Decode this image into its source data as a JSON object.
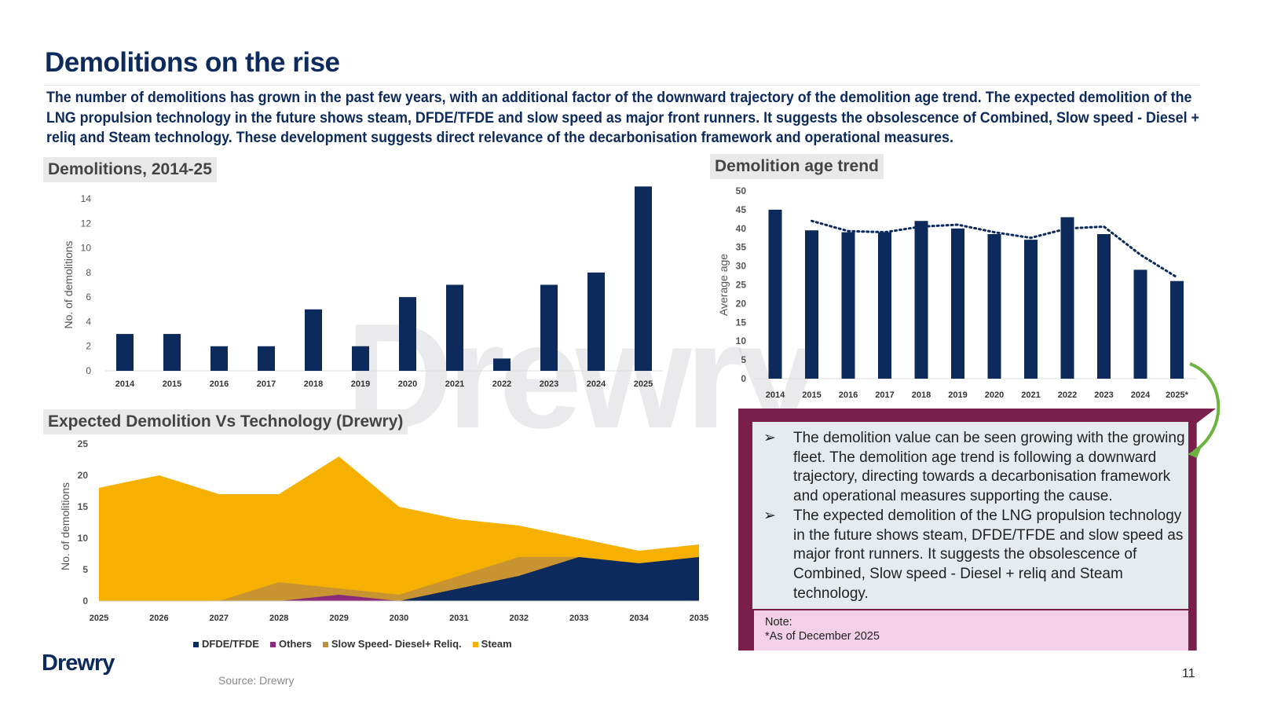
{
  "title": "Demolitions on the rise",
  "intro": "The number of demolitions has grown in the past few years, with an additional factor of the downward trajectory of the demolition age trend. The expected demolition of the LNG propulsion technology in the future shows steam, DFDE/TFDE and slow speed as major front runners. It suggests the obsolescence of Combined, Slow speed - Diesel + reliq and Steam technology. These development suggests direct relevance of the decarbonisation framework and operational measures.",
  "watermark": "Drewry",
  "colors": {
    "navy": "#0d2a5c",
    "steam": "#f5b000",
    "slow": "#bf8f3a",
    "others": "#8b2a7a",
    "box": "#7a1f4c",
    "note": "#f3d0e8",
    "arrow": "#6cb33f"
  },
  "chart_data": [
    {
      "type": "bar",
      "title": "Demolitions, 2014-25",
      "ylabel": "No. of demolitions",
      "ylim": [
        0,
        15
      ],
      "yticks": [
        0,
        2,
        4,
        6,
        8,
        10,
        12,
        14
      ],
      "categories": [
        "2014",
        "2015",
        "2016",
        "2017",
        "2018",
        "2019",
        "2020",
        "2021",
        "2022",
        "2023",
        "2024",
        "2025"
      ],
      "values": [
        3,
        3,
        2,
        2,
        5,
        2,
        6,
        7,
        1,
        7,
        8,
        15
      ]
    },
    {
      "type": "bar",
      "title": "Demolition age trend",
      "ylabel": "Average age",
      "ylim": [
        0,
        50
      ],
      "yticks": [
        0,
        5,
        10,
        15,
        20,
        25,
        30,
        35,
        40,
        45,
        50
      ],
      "categories": [
        "2014",
        "2015",
        "2016",
        "2017",
        "2018",
        "2019",
        "2020",
        "2021",
        "2022",
        "2023",
        "2024",
        "2025*"
      ],
      "values": [
        45,
        39.5,
        39,
        39,
        42,
        40,
        38.5,
        37,
        43,
        38.5,
        29,
        26
      ],
      "trendline": [
        null,
        42,
        39.3,
        39,
        40.5,
        41,
        39,
        37.5,
        40,
        40.5,
        33,
        27
      ]
    },
    {
      "type": "area",
      "title": "Expected Demolition Vs Technology (Drewry)",
      "ylabel": "No. of demolitions",
      "ylim": [
        0,
        25
      ],
      "yticks": [
        0,
        5,
        10,
        15,
        20,
        25
      ],
      "categories": [
        "2025",
        "2026",
        "2027",
        "2028",
        "2029",
        "2030",
        "2031",
        "2032",
        "2033",
        "2034",
        "2035"
      ],
      "series": [
        {
          "name": "Steam",
          "values": [
            18,
            20,
            17,
            17,
            23,
            15,
            13,
            12,
            10,
            8,
            9
          ]
        },
        {
          "name": "Slow Speed- Diesel+ Reliq.",
          "values": [
            0,
            0,
            0,
            3,
            2,
            1,
            4,
            7,
            7,
            5,
            5
          ]
        },
        {
          "name": "DFDE/TFDE",
          "values": [
            0,
            0,
            0,
            0,
            0,
            0,
            2,
            4,
            7,
            6,
            7
          ]
        },
        {
          "name": "Others",
          "values": [
            0,
            0,
            0,
            0,
            1,
            0,
            0,
            0,
            0,
            0,
            0
          ]
        }
      ],
      "legend": [
        "DFDE/TFDE",
        "Others",
        "Slow Speed- Diesel+ Reliq.",
        "Steam"
      ]
    }
  ],
  "callout": {
    "bullets": [
      "The demolition value can be seen growing with the growing fleet. The demolition age trend is following a downward trajectory, directing towards a decarbonisation framework and operational measures supporting the cause.",
      "The expected demolition of the LNG propulsion technology in the future shows steam, DFDE/TFDE and slow speed as major front runners. It suggests the obsolescence of Combined, Slow speed - Diesel + reliq and Steam technology."
    ],
    "bullet_icon": "➢",
    "note_label": "Note:",
    "note_text": "*As of December 2025"
  },
  "footer": {
    "logo": "Drewry",
    "source": "Source: Drewry",
    "page": "11"
  }
}
